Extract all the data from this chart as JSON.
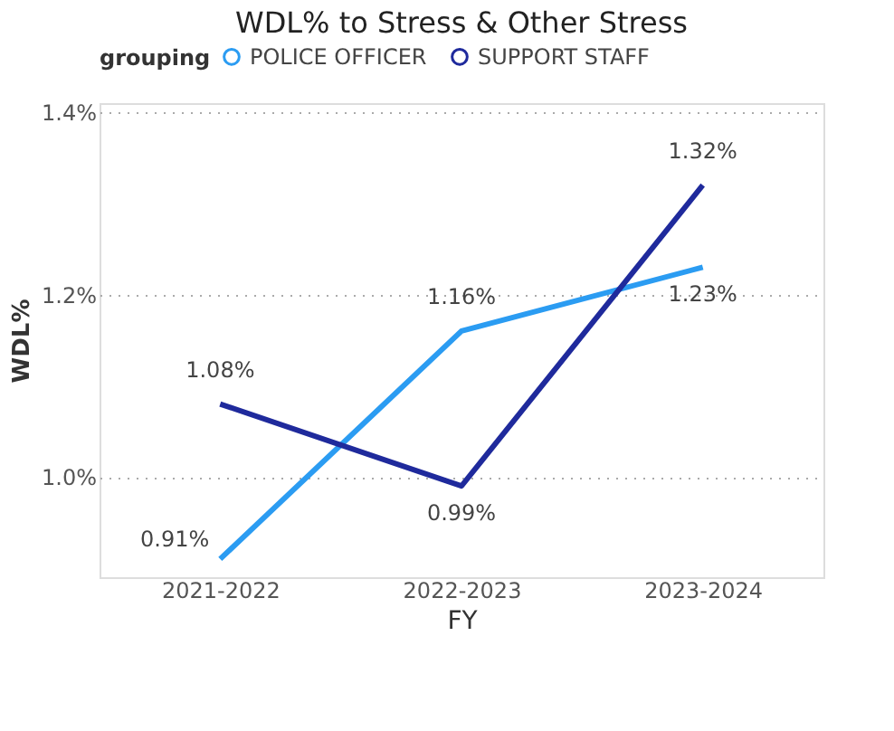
{
  "chart_data": {
    "type": "line",
    "title": "WDL% to Stress & Other Stress",
    "xlabel": "FY",
    "ylabel": "WDL%",
    "legend_title": "grouping",
    "legend": "top left",
    "grid": "y",
    "marker": "none",
    "categories": [
      "2021-2022",
      "2022-2023",
      "2023-2024"
    ],
    "ylim": [
      0.89,
      1.41
    ],
    "yticks": [
      {
        "value": 1.0,
        "label": "1.0%"
      },
      {
        "value": 1.2,
        "label": "1.2%"
      },
      {
        "value": 1.4,
        "label": "1.4%"
      }
    ],
    "series": [
      {
        "name": "POLICE OFFICER",
        "color": "#2b9cf2",
        "values": [
          0.91,
          1.16,
          1.23
        ],
        "value_labels": [
          "0.91%",
          "1.16%",
          "1.23%"
        ]
      },
      {
        "name": "SUPPORT STAFF",
        "color": "#1f2a9c",
        "values": [
          1.08,
          0.99,
          1.32
        ],
        "value_labels": [
          "1.08%",
          "0.99%",
          "1.32%"
        ]
      }
    ]
  }
}
